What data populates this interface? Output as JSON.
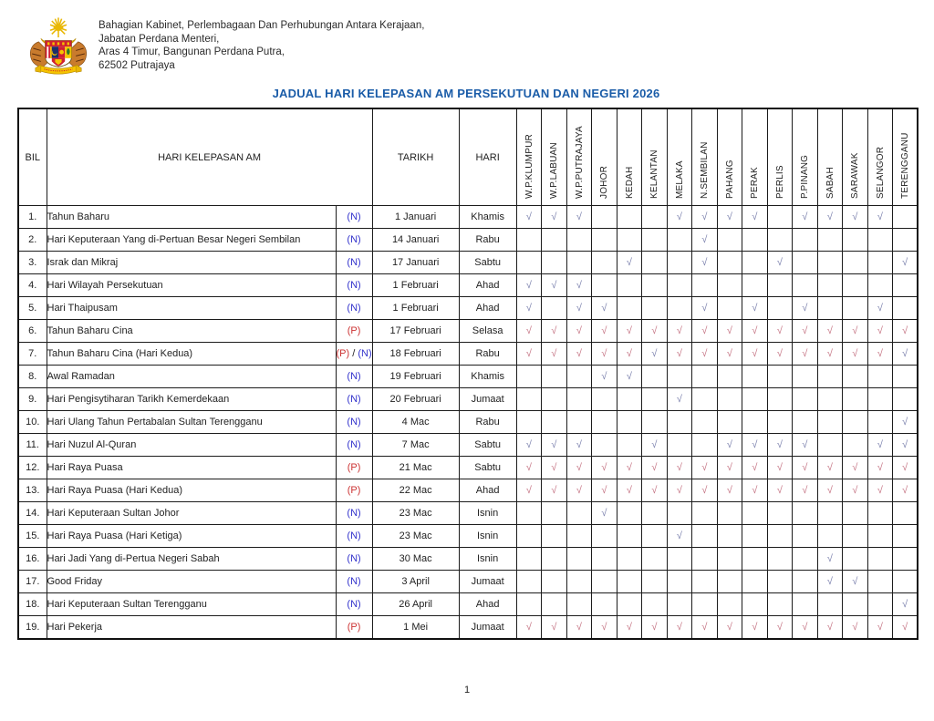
{
  "letterhead": {
    "logo": "malaysia-coat-of-arms",
    "lines": [
      "Bahagian Kabinet, Perlembagaan Dan Perhubungan Antara Kerajaan,",
      "Jabatan Perdana Menteri,",
      "Aras 4 Timur, Bangunan Perdana Putra,",
      "62502 Putrajaya"
    ]
  },
  "title": "JADUAL HARI KELEPASAN AM PERSEKUTUAN DAN NEGERI 2026",
  "colors": {
    "title_blue": "#1a5ca8",
    "marker_national": "#3333cc",
    "marker_public": "#cc3333",
    "check_blue": "#7b80ad",
    "check_red": "#c57383",
    "empty_cell_gray": "#b8b8b8"
  },
  "table": {
    "headers": {
      "bil": "BIL",
      "holiday": "HARI KELEPASAN AM",
      "date": "TARIKH",
      "day": "HARI"
    },
    "states": [
      "W.P.KLUMPUR",
      "W.P.LABUAN",
      "W.P.PUTRAJAYA",
      "JOHOR",
      "KEDAH",
      "KELANTAN",
      "MELAKA",
      "N.SEMBILAN",
      "PAHANG",
      "PERAK",
      "PERLIS",
      "P.PINANG",
      "SABAH",
      "SARAWAK",
      "SELANGOR",
      "TERENGGANU"
    ],
    "check_glyph": "√",
    "rows": [
      {
        "bil": "1.",
        "name": "Tahun Baharu",
        "markers": [
          {
            "text": "(N)",
            "type": "n"
          }
        ],
        "date": "1 Januari",
        "day": "Khamis",
        "cells": "nnn---nnnn-nnnn-"
      },
      {
        "bil": "2.",
        "name": "Hari Keputeraan Yang di-Pertuan Besar Negeri Sembilan",
        "markers": [
          {
            "text": "(N)",
            "type": "n"
          }
        ],
        "date": "14 Januari",
        "day": "Rabu",
        "cells": "-------n--------"
      },
      {
        "bil": "3.",
        "name": "Israk dan Mikraj",
        "markers": [
          {
            "text": "(N)",
            "type": "n"
          }
        ],
        "date": "17 Januari",
        "day": "Sabtu",
        "cells": "----n--n--n----n"
      },
      {
        "bil": "4.",
        "name": "Hari Wilayah Persekutuan",
        "markers": [
          {
            "text": "(N)",
            "type": "n"
          }
        ],
        "date": "1 Februari",
        "day": "Ahad",
        "cells": "nnn-------------"
      },
      {
        "bil": "5.",
        "name": "Hari Thaipusam",
        "markers": [
          {
            "text": "(N)",
            "type": "n"
          }
        ],
        "date": "1 Februari",
        "day": "Ahad",
        "cells": "n-nn---n-n-n--n-"
      },
      {
        "bil": "6.",
        "name": "Tahun Baharu Cina",
        "markers": [
          {
            "text": "(P)",
            "type": "p"
          }
        ],
        "date": "17 Februari",
        "day": "Selasa",
        "cells": "pppppppppppppppp"
      },
      {
        "bil": "7.",
        "name": "Tahun Baharu Cina (Hari Kedua)",
        "markers": [
          {
            "text": "(P)",
            "type": "p"
          },
          {
            "text": " / ",
            "type": "sep"
          },
          {
            "text": "(N)",
            "type": "n"
          }
        ],
        "date": "18 Februari",
        "day": "Rabu",
        "cells": "pppppnpppppppppn"
      },
      {
        "bil": "8.",
        "name": "Awal Ramadan",
        "markers": [
          {
            "text": "(N)",
            "type": "n"
          }
        ],
        "date": "19 Februari",
        "day": "Khamis",
        "cells": "---nn-----------"
      },
      {
        "bil": "9.",
        "name": "Hari Pengisytiharan Tarikh Kemerdekaan",
        "markers": [
          {
            "text": "(N)",
            "type": "n"
          }
        ],
        "date": "20 Februari",
        "day": "Jumaat",
        "cells": "------n---------"
      },
      {
        "bil": "10.",
        "name": "Hari Ulang Tahun Pertabalan Sultan Terengganu",
        "markers": [
          {
            "text": "(N)",
            "type": "n"
          }
        ],
        "date": "4 Mac",
        "day": "Rabu",
        "cells": "---------------n"
      },
      {
        "bil": "11.",
        "name": "Hari Nuzul Al-Quran",
        "markers": [
          {
            "text": "(N)",
            "type": "n"
          }
        ],
        "date": "7 Mac",
        "day": "Sabtu",
        "cells": "nnn--n--nnnn--nn"
      },
      {
        "bil": "12.",
        "name": "Hari Raya Puasa",
        "markers": [
          {
            "text": "(P)",
            "type": "p"
          }
        ],
        "date": "21 Mac",
        "day": "Sabtu",
        "cells": "pppppppppppppppp"
      },
      {
        "bil": "13.",
        "name": "Hari Raya Puasa (Hari Kedua)",
        "markers": [
          {
            "text": "(P)",
            "type": "p"
          }
        ],
        "date": "22 Mac",
        "day": "Ahad",
        "cells": "pppppppppppppppp"
      },
      {
        "bil": "14.",
        "name": "Hari Keputeraan Sultan Johor",
        "markers": [
          {
            "text": "(N)",
            "type": "n"
          }
        ],
        "date": "23 Mac",
        "day": "Isnin",
        "cells": "---n------------"
      },
      {
        "bil": "15.",
        "name": "Hari Raya Puasa (Hari Ketiga)",
        "markers": [
          {
            "text": "(N)",
            "type": "n"
          }
        ],
        "date": "23 Mac",
        "day": "Isnin",
        "cells": "------n---------"
      },
      {
        "bil": "16.",
        "name": "Hari Jadi Yang di-Pertua Negeri Sabah",
        "markers": [
          {
            "text": "(N)",
            "type": "n"
          }
        ],
        "date": "30 Mac",
        "day": "Isnin",
        "cells": "------------n---"
      },
      {
        "bil": "17.",
        "name": "Good Friday",
        "markers": [
          {
            "text": "(N)",
            "type": "n"
          }
        ],
        "date": "3 April",
        "day": "Jumaat",
        "cells": "------------nn--"
      },
      {
        "bil": "18.",
        "name": "Hari Keputeraan Sultan Terengganu",
        "markers": [
          {
            "text": "(N)",
            "type": "n"
          }
        ],
        "date": "26 April",
        "day": "Ahad",
        "cells": "---------------n"
      },
      {
        "bil": "19.",
        "name": "Hari Pekerja",
        "markers": [
          {
            "text": "(P)",
            "type": "p"
          }
        ],
        "date": "1 Mei",
        "day": "Jumaat",
        "cells": "pppppppppppppppp"
      }
    ]
  },
  "footer": {
    "page_number": "1"
  }
}
